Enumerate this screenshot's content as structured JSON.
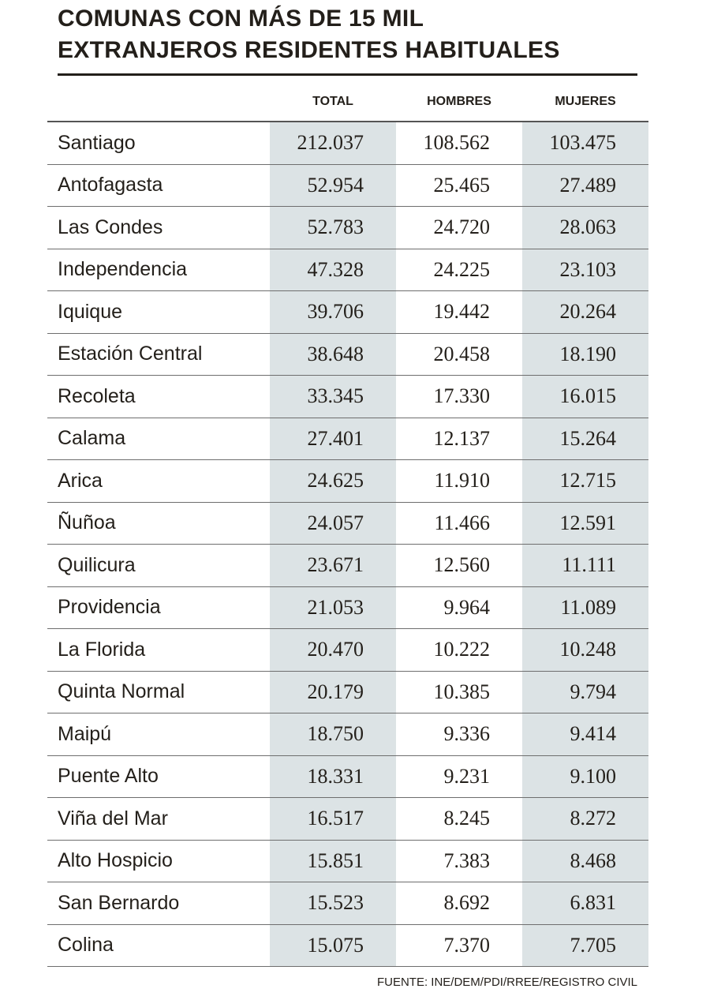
{
  "title_line1": "COMUNAS CON MÁS DE 15 MIL",
  "title_line2": "EXTRANJEROS RESIDENTES HABITUALES",
  "source": "FUENTE: INE/DEM/PDI/RREE/REGISTRO CIVIL",
  "colors": {
    "shade": "#dce3e5",
    "text": "#231f1a"
  },
  "chart_data": {
    "type": "table",
    "title": "COMUNAS CON MÁS DE 15 MIL EXTRANJEROS RESIDENTES HABITUALES",
    "columns": [
      "",
      "TOTAL",
      "HOMBRES",
      "MUJERES"
    ],
    "rows": [
      [
        "Santiago",
        "212.037",
        "108.562",
        "103.475"
      ],
      [
        "Antofagasta",
        "52.954",
        "25.465",
        "27.489"
      ],
      [
        "Las Condes",
        "52.783",
        "24.720",
        "28.063"
      ],
      [
        "Independencia",
        "47.328",
        "24.225",
        "23.103"
      ],
      [
        "Iquique",
        "39.706",
        "19.442",
        "20.264"
      ],
      [
        "Estación Central",
        "38.648",
        "20.458",
        "18.190"
      ],
      [
        "Recoleta",
        "33.345",
        "17.330",
        "16.015"
      ],
      [
        "Calama",
        "27.401",
        "12.137",
        "15.264"
      ],
      [
        "Arica",
        "24.625",
        "11.910",
        "12.715"
      ],
      [
        "Ñuñoa",
        "24.057",
        "11.466",
        "12.591"
      ],
      [
        "Quilicura",
        "23.671",
        "12.560",
        "11.111"
      ],
      [
        "Providencia",
        "21.053",
        "9.964",
        "11.089"
      ],
      [
        "La Florida",
        "20.470",
        "10.222",
        "10.248"
      ],
      [
        "Quinta Normal",
        "20.179",
        "10.385",
        "9.794"
      ],
      [
        "Maipú",
        "18.750",
        "9.336",
        "9.414"
      ],
      [
        "Puente Alto",
        "18.331",
        "9.231",
        "9.100"
      ],
      [
        "Viña del Mar",
        "16.517",
        "8.245",
        "8.272"
      ],
      [
        "Alto Hospicio",
        "15.851",
        "7.383",
        "8.468"
      ],
      [
        "San Bernardo",
        "15.523",
        "8.692",
        "6.831"
      ],
      [
        "Colina",
        "15.075",
        "7.370",
        "7.705"
      ]
    ]
  }
}
